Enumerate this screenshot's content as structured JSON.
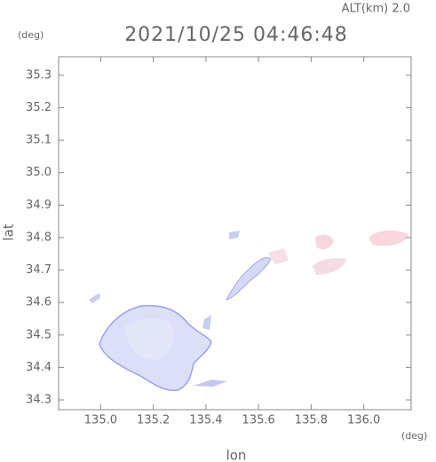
{
  "chart_data": {
    "type": "map",
    "top_label": "ALT(km) 2.0",
    "title": "2021/10/25 04:46:48",
    "y_unit": "(deg)",
    "x_unit": "(deg)",
    "xlabel": "lon",
    "ylabel": "lat",
    "xlim": [
      134.84,
      136.18
    ],
    "ylim": [
      34.27,
      35.357
    ],
    "xticks": [
      {
        "value": 135,
        "label": "135.0"
      },
      135.2,
      135.4,
      135.6,
      135.8,
      {
        "value": 136,
        "label": "136.0"
      }
    ],
    "yticks": [
      34.3,
      34.4,
      34.5,
      34.6,
      34.7,
      34.8,
      34.9,
      {
        "value": 35,
        "label": "35.0"
      },
      35.1,
      35.2,
      35.3
    ]
  }
}
